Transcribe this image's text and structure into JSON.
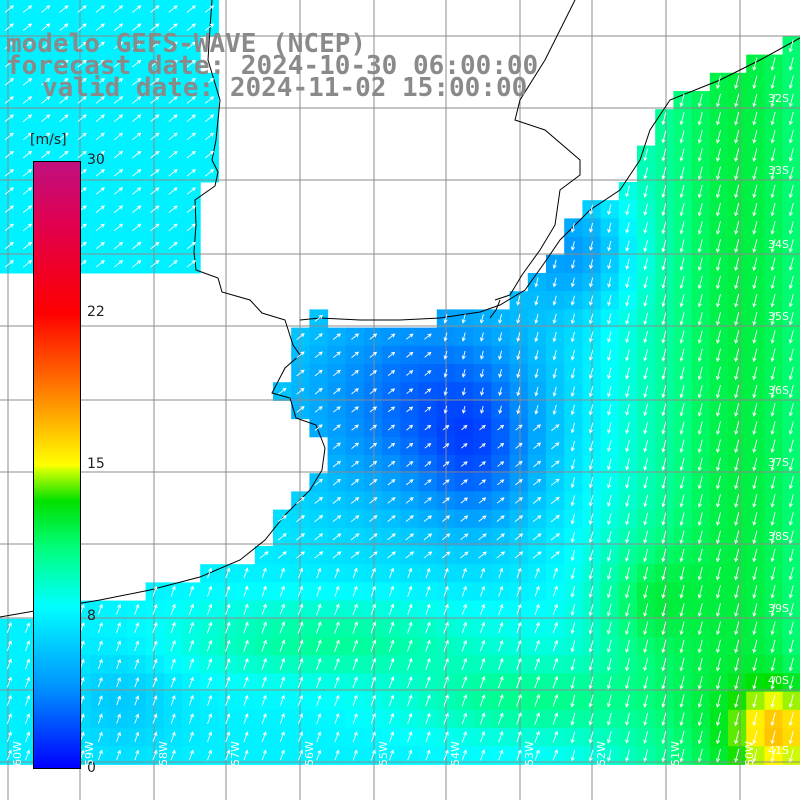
{
  "title": {
    "model": "modelo GEFS-WAVE (NCEP)",
    "forecast": "forecast date: 2024-10-30 06:00:00",
    "valid": "valid date: 2024-11-02 15:00:00"
  },
  "colorbar": {
    "unit": "[m/s]",
    "ticks": [
      "30",
      "22",
      "15",
      "8",
      "0"
    ],
    "tick_values": [
      30,
      22,
      15,
      8,
      0
    ],
    "min": 0,
    "max": 30,
    "colors": [
      "#0000ff",
      "#0090ff",
      "#00ffff",
      "#00ff80",
      "#00e000",
      "#ffff00",
      "#ff8000",
      "#ff0000",
      "#c01080"
    ]
  },
  "map": {
    "lat_labels": [
      "32S",
      "33S",
      "34S",
      "35S",
      "36S",
      "37S",
      "38S",
      "39S",
      "40S",
      "41S"
    ],
    "lon_labels": [
      "60W",
      "59W",
      "58W",
      "57W",
      "56W",
      "55W",
      "54W",
      "53W",
      "52W",
      "51W",
      "50W"
    ],
    "land_color": "#ffffff",
    "grid_color": "#888888",
    "arrow_color": "#ffffff",
    "coast_color": "#000000"
  }
}
